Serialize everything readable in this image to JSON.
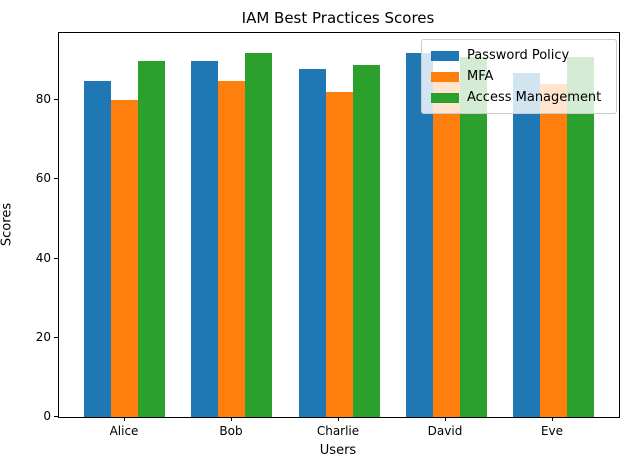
{
  "chart_data": {
    "type": "bar",
    "title": "IAM Best Practices Scores",
    "xlabel": "Users",
    "ylabel": "Scores",
    "categories": [
      "Alice",
      "Bob",
      "Charlie",
      "David",
      "Eve"
    ],
    "series": [
      {
        "name": "Password Policy",
        "color": "#1f77b4",
        "values": [
          85,
          90,
          88,
          92,
          87
        ]
      },
      {
        "name": "MFA",
        "color": "#ff7f0e",
        "values": [
          80,
          85,
          82,
          85,
          84
        ]
      },
      {
        "name": "Access Management",
        "color": "#2ca02c",
        "values": [
          90,
          92,
          89,
          91,
          91
        ]
      }
    ],
    "yticks": [
      0,
      20,
      40,
      60,
      80
    ],
    "ylim": [
      0,
      97
    ],
    "grid": false,
    "legend_position": "upper right",
    "background_color": "#ffffff",
    "spine_color": "#000000"
  }
}
